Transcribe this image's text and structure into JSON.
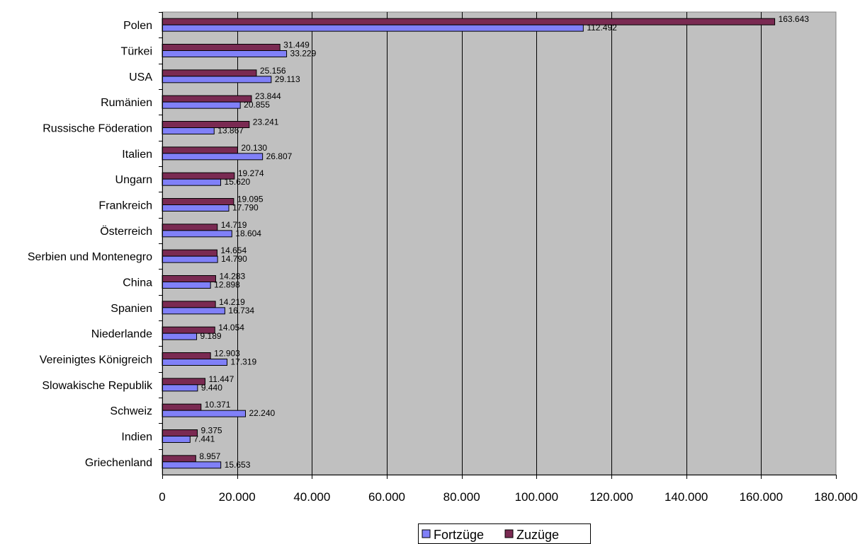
{
  "chart_data": {
    "type": "bar",
    "orientation": "horizontal",
    "categories": [
      "Polen",
      "Türkei",
      "USA",
      "Rumänien",
      "Russische Föderation",
      "Italien",
      "Ungarn",
      "Frankreich",
      "Österreich",
      "Serbien und Montenegro",
      "China",
      "Spanien",
      "Niederlande",
      "Vereinigtes Königreich",
      "Slowakische Republik",
      "Schweiz",
      "Indien",
      "Griechenland"
    ],
    "series": [
      {
        "name": "Zuzüge",
        "color": "#7a2a52",
        "values": [
          163643,
          31449,
          25156,
          23844,
          23241,
          20130,
          19274,
          19095,
          14719,
          14654,
          14283,
          14219,
          14054,
          12903,
          11447,
          10371,
          9375,
          8957
        ],
        "labels": [
          "163.643",
          "31.449",
          "25.156",
          "23.844",
          "23.241",
          "20.130",
          "19.274",
          "19.095",
          "14.719",
          "14.654",
          "14.283",
          "14.219",
          "14.054",
          "12.903",
          "11.447",
          "10.371",
          "9.375",
          "8.957"
        ]
      },
      {
        "name": "Fortzüge",
        "color": "#8080f8",
        "values": [
          112492,
          33229,
          29113,
          20855,
          13867,
          26807,
          15620,
          17790,
          18604,
          14790,
          12898,
          16734,
          9189,
          17319,
          9440,
          22240,
          7441,
          15653
        ],
        "labels": [
          "112.492",
          "33.229",
          "29.113",
          "20.855",
          "13.867",
          "26.807",
          "15.620",
          "17.790",
          "18.604",
          "14.790",
          "12.898",
          "16.734",
          "9.189",
          "17.319",
          "9.440",
          "22.240",
          "7.441",
          "15.653"
        ]
      }
    ],
    "xlim": [
      0,
      180000
    ],
    "xticks": [
      0,
      20000,
      40000,
      60000,
      80000,
      100000,
      120000,
      140000,
      160000,
      180000
    ],
    "xtick_labels": [
      "0",
      "20.000",
      "40.000",
      "60.000",
      "80.000",
      "100.000",
      "120.000",
      "140.000",
      "160.000",
      "180.000"
    ],
    "plot_background": "#c0c0c0",
    "grid": true,
    "legend": {
      "position": "bottom",
      "order": [
        "Fortzüge",
        "Zuzüge"
      ]
    }
  }
}
